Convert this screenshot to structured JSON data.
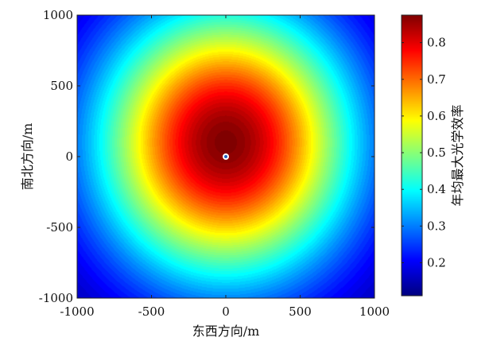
{
  "chart_data": {
    "type": "heatmap",
    "title": "",
    "xlabel": "东西方向/m",
    "ylabel": "南北方向/m",
    "xlim": [
      -1000,
      1000
    ],
    "ylim": [
      -1000,
      1000
    ],
    "xticks": [
      -1000,
      -500,
      0,
      500,
      1000
    ],
    "yticks": [
      -1000,
      -500,
      0,
      500,
      1000
    ],
    "xtick_labels": [
      "-1000",
      "-500",
      "0",
      "500",
      "1000"
    ],
    "ytick_labels": [
      "-1000",
      "-500",
      "0",
      "500",
      "1000"
    ],
    "colorbar": {
      "label": "年均最大光学效率",
      "range": [
        0.11,
        0.875
      ],
      "ticks": [
        0.2,
        0.3,
        0.4,
        0.5,
        0.6,
        0.7,
        0.8
      ],
      "tick_labels": [
        "0.2",
        "0.3",
        "0.4",
        "0.5",
        "0.6",
        "0.7",
        "0.8"
      ],
      "colormap": "jet"
    },
    "field": {
      "description_of_values": "efficiency contours around tower at origin",
      "peak_value": 0.875,
      "peak_location": [
        0,
        100
      ],
      "center_marker": [
        0,
        0
      ],
      "samples": [
        {
          "x": 0,
          "y": 1000,
          "value": 0.36
        },
        {
          "x": 0,
          "y": 500,
          "value": 0.68
        },
        {
          "x": 0,
          "y": 200,
          "value": 0.86
        },
        {
          "x": 0,
          "y": -200,
          "value": 0.78
        },
        {
          "x": 0,
          "y": -500,
          "value": 0.56
        },
        {
          "x": 0,
          "y": -1000,
          "value": 0.26
        },
        {
          "x": 500,
          "y": 0,
          "value": 0.62
        },
        {
          "x": -500,
          "y": 0,
          "value": 0.62
        },
        {
          "x": 1000,
          "y": 0,
          "value": 0.32
        },
        {
          "x": -1000,
          "y": 0,
          "value": 0.32
        },
        {
          "x": 1000,
          "y": -1000,
          "value": 0.13
        },
        {
          "x": -1000,
          "y": -1000,
          "value": 0.13
        },
        {
          "x": 1000,
          "y": 1000,
          "value": 0.2
        },
        {
          "x": -1000,
          "y": 1000,
          "value": 0.2
        }
      ]
    }
  }
}
